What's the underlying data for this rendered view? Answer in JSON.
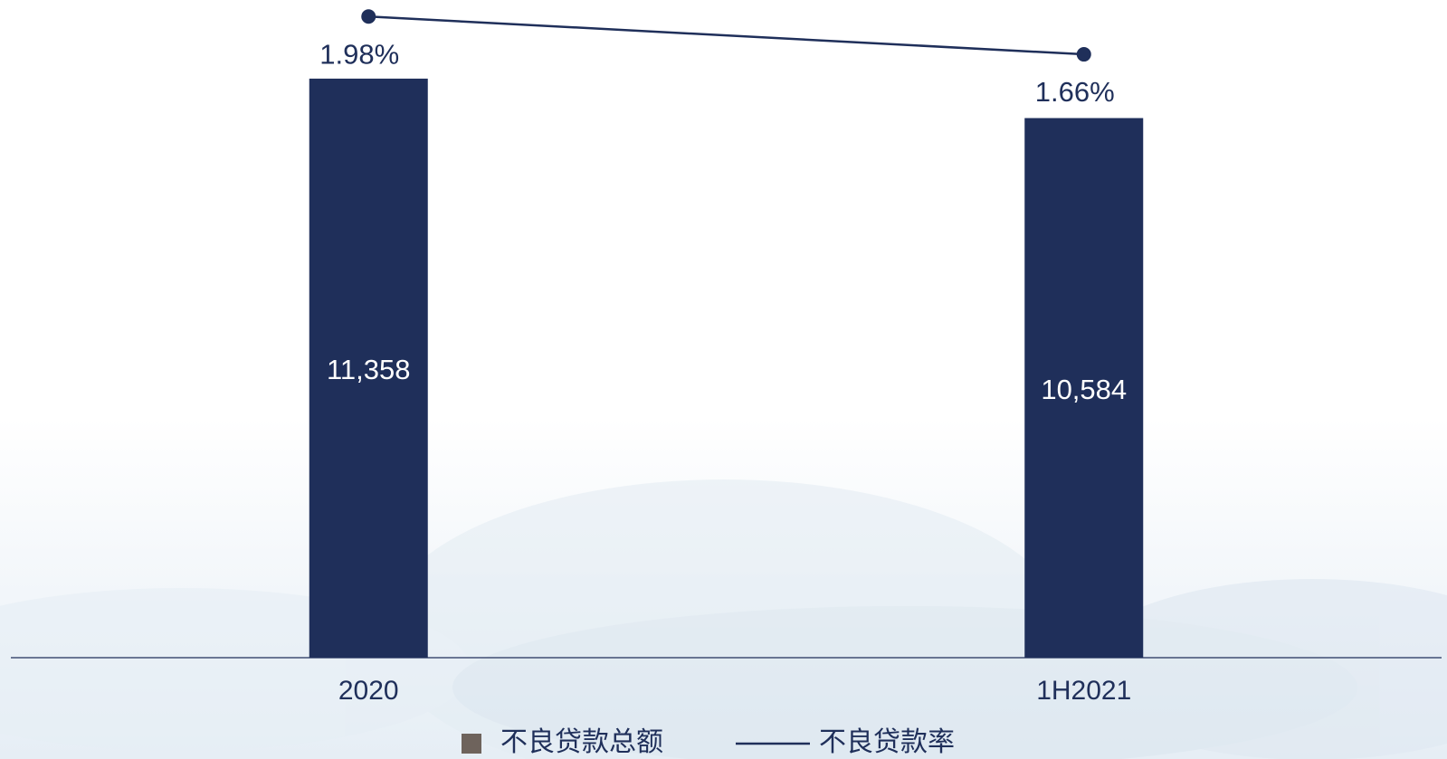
{
  "chart_data": {
    "type": "bar-line",
    "categories": [
      "2020",
      "1H2021"
    ],
    "series": [
      {
        "name": "不良贷款总额",
        "type": "bar",
        "color": "#1f2f5a",
        "legend_color": "#6e635c",
        "values": [
          11358,
          10584
        ],
        "value_labels": [
          "11,358",
          "10,584"
        ]
      },
      {
        "name": "不良贷款率",
        "type": "line",
        "axis": "y2",
        "color": "#1f2f5a",
        "values": [
          1.98,
          1.66
        ],
        "value_labels": [
          "1.98%",
          "1.66%"
        ]
      }
    ],
    "ylim": [
      0,
      12900
    ],
    "y2lim": [
      -3.45,
      2.12
    ],
    "legend": "bottom"
  }
}
